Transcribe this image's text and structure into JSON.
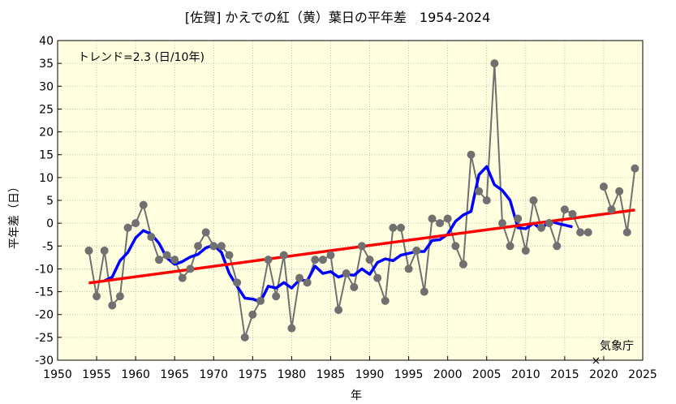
{
  "chart_data": {
    "type": "line",
    "title": "[佐賀] かえでの紅（黄）葉日の平年差　1954-2024",
    "xlabel": "年",
    "ylabel": "平年差（日）",
    "xlim": [
      1950,
      2025
    ],
    "ylim": [
      -30,
      40
    ],
    "xticks": [
      "1950",
      "1955",
      "1960",
      "1965",
      "1970",
      "1975",
      "1980",
      "1985",
      "1990",
      "1995",
      "2000",
      "2005",
      "2010",
      "2015",
      "2020",
      "2025"
    ],
    "yticks": [
      "-30",
      "-25",
      "-20",
      "-15",
      "-10",
      "-5",
      "0",
      "5",
      "10",
      "15",
      "20",
      "25",
      "30",
      "35",
      "40"
    ],
    "grid": true,
    "background": "#ffffe0",
    "annotation": "トレンド=2.3 (日/10年)",
    "source_label": "気象庁",
    "series": [
      {
        "role": "annual",
        "color": "#707070",
        "points": [
          [
            1954,
            -6
          ],
          [
            1955,
            -16
          ],
          [
            1956,
            -6
          ],
          [
            1957,
            -18
          ],
          [
            1958,
            -16
          ],
          [
            1959,
            -1
          ],
          [
            1960,
            0
          ],
          [
            1961,
            4
          ],
          [
            1962,
            -3
          ],
          [
            1963,
            -8
          ],
          [
            1964,
            -7
          ],
          [
            1965,
            -8
          ],
          [
            1966,
            -12
          ],
          [
            1967,
            -10
          ],
          [
            1968,
            -5
          ],
          [
            1969,
            -2
          ],
          [
            1970,
            -5
          ],
          [
            1971,
            -5
          ],
          [
            1972,
            -7
          ],
          [
            1973,
            -13
          ],
          [
            1974,
            -25
          ],
          [
            1975,
            -20
          ],
          [
            1976,
            -17
          ],
          [
            1977,
            -8
          ],
          [
            1978,
            -16
          ],
          [
            1979,
            -7
          ],
          [
            1980,
            -23
          ],
          [
            1981,
            -12
          ],
          [
            1982,
            -13
          ],
          [
            1983,
            -8
          ],
          [
            1984,
            -8
          ],
          [
            1985,
            -7
          ],
          [
            1986,
            -19
          ],
          [
            1987,
            -11
          ],
          [
            1988,
            -14
          ],
          [
            1989,
            -5
          ],
          [
            1990,
            -8
          ],
          [
            1991,
            -12
          ],
          [
            1992,
            -17
          ],
          [
            1993,
            -1
          ],
          [
            1994,
            -1
          ],
          [
            1995,
            -10
          ],
          [
            1996,
            -6
          ],
          [
            1997,
            -15
          ],
          [
            1998,
            1
          ],
          [
            1999,
            0
          ],
          [
            2000,
            1
          ],
          [
            2001,
            -5
          ],
          [
            2002,
            -9
          ],
          [
            2003,
            15
          ],
          [
            2004,
            7
          ],
          [
            2005,
            5
          ],
          [
            2006,
            35
          ],
          [
            2007,
            0
          ],
          [
            2008,
            -5
          ],
          [
            2009,
            1
          ],
          [
            2010,
            -6
          ],
          [
            2011,
            5
          ],
          [
            2012,
            -1
          ],
          [
            2013,
            0
          ],
          [
            2014,
            -5
          ],
          [
            2015,
            3
          ],
          [
            2016,
            2
          ],
          [
            2017,
            -2
          ],
          [
            2018,
            -2
          ],
          [
            2020,
            8
          ],
          [
            2021,
            3
          ],
          [
            2022,
            7
          ],
          [
            2023,
            -2
          ],
          [
            2024,
            12
          ]
        ]
      },
      {
        "role": "moving-average",
        "color": "#0000ff",
        "points": [
          [
            1956,
            -12.6
          ],
          [
            1957,
            -11.8
          ],
          [
            1958,
            -8.2
          ],
          [
            1959,
            -6.4
          ],
          [
            1960,
            -3.2
          ],
          [
            1961,
            -1.6
          ],
          [
            1962,
            -2.4
          ],
          [
            1963,
            -4.4
          ],
          [
            1964,
            -7.6
          ],
          [
            1965,
            -9.0
          ],
          [
            1966,
            -8.4
          ],
          [
            1967,
            -7.4
          ],
          [
            1968,
            -6.8
          ],
          [
            1969,
            -5.4
          ],
          [
            1970,
            -4.8
          ],
          [
            1971,
            -6.4
          ],
          [
            1972,
            -11.0
          ],
          [
            1973,
            -13.8
          ],
          [
            1974,
            -16.4
          ],
          [
            1975,
            -16.6
          ],
          [
            1976,
            -17.2
          ],
          [
            1977,
            -13.8
          ],
          [
            1978,
            -14.2
          ],
          [
            1979,
            -13.0
          ],
          [
            1980,
            -14.2
          ],
          [
            1981,
            -12.4
          ],
          [
            1982,
            -12.6
          ],
          [
            1983,
            -9.4
          ],
          [
            1984,
            -11.0
          ],
          [
            1985,
            -10.6
          ],
          [
            1986,
            -11.8
          ],
          [
            1987,
            -11.2
          ],
          [
            1988,
            -11.4
          ],
          [
            1989,
            -10.0
          ],
          [
            1990,
            -11.2
          ],
          [
            1991,
            -8.6
          ],
          [
            1992,
            -7.8
          ],
          [
            1993,
            -8.2
          ],
          [
            1994,
            -7.0
          ],
          [
            1995,
            -6.6
          ],
          [
            1996,
            -6.2
          ],
          [
            1997,
            -6.2
          ],
          [
            1998,
            -3.8
          ],
          [
            1999,
            -3.6
          ],
          [
            2000,
            -2.4
          ],
          [
            2001,
            0.4
          ],
          [
            2002,
            1.8
          ],
          [
            2003,
            2.6
          ],
          [
            2004,
            10.6
          ],
          [
            2005,
            12.4
          ],
          [
            2006,
            8.4
          ],
          [
            2007,
            7.2
          ],
          [
            2008,
            5.0
          ],
          [
            2009,
            -1.0
          ],
          [
            2010,
            -1.2
          ],
          [
            2011,
            0.0
          ],
          [
            2012,
            -1.4
          ],
          [
            2013,
            0.6
          ],
          [
            2014,
            0.0
          ],
          [
            2015,
            -0.4
          ],
          [
            2016,
            -0.8
          ]
        ]
      },
      {
        "role": "trend",
        "color": "#ff0000",
        "points": [
          [
            1954,
            -13.1
          ],
          [
            2024,
            2.9
          ]
        ]
      }
    ],
    "missing_marker": {
      "year": 2019,
      "symbol": "×",
      "y": -30
    }
  }
}
